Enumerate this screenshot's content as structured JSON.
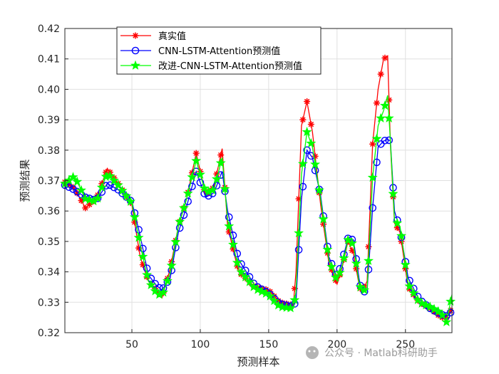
{
  "chart_data": {
    "type": "line",
    "xlabel": "预测样本",
    "ylabel": "预测结果",
    "xlim": [
      1,
      284
    ],
    "ylim": [
      0.32,
      0.42
    ],
    "xticks": [
      50,
      100,
      150,
      200,
      250
    ],
    "yticks": [
      0.32,
      0.33,
      0.34,
      0.35,
      0.36,
      0.37,
      0.38,
      0.39,
      0.4,
      0.41,
      0.42
    ],
    "grid": true,
    "legend_position": "top-left",
    "x_anchors": [
      1,
      8,
      16,
      24,
      32,
      40,
      50,
      56,
      62,
      68,
      72,
      78,
      84,
      90,
      97,
      104,
      110,
      116,
      120,
      128,
      140,
      150,
      158,
      168,
      170,
      174,
      178,
      182,
      188,
      194,
      200,
      204,
      208,
      212,
      216,
      218,
      222,
      226,
      230,
      234,
      237,
      239,
      242,
      246,
      252,
      260,
      268,
      276,
      280,
      284
    ],
    "series": [
      {
        "name": "真实值",
        "color": "#ff0000",
        "marker": "asterisk",
        "values": [
          0.3695,
          0.3675,
          0.361,
          0.364,
          0.374,
          0.369,
          0.362,
          0.345,
          0.337,
          0.334,
          0.3315,
          0.341,
          0.355,
          0.364,
          0.379,
          0.365,
          0.368,
          0.3805,
          0.355,
          0.34,
          0.335,
          0.334,
          0.33,
          0.329,
          0.34,
          0.388,
          0.396,
          0.386,
          0.362,
          0.343,
          0.336,
          0.342,
          0.35,
          0.346,
          0.336,
          0.333,
          0.337,
          0.382,
          0.4,
          0.41,
          0.411,
          0.382,
          0.356,
          0.353,
          0.335,
          0.33,
          0.328,
          0.325,
          0.325,
          0.328
        ]
      },
      {
        "name": "CNN-LSTM-Attention预测值",
        "color": "#0000ff",
        "marker": "circle",
        "values": [
          0.3685,
          0.367,
          0.3645,
          0.3635,
          0.369,
          0.367,
          0.363,
          0.352,
          0.339,
          0.3355,
          0.334,
          0.338,
          0.353,
          0.3615,
          0.373,
          0.3645,
          0.366,
          0.373,
          0.36,
          0.344,
          0.3355,
          0.333,
          0.3295,
          0.3285,
          0.3305,
          0.364,
          0.38,
          0.3775,
          0.365,
          0.345,
          0.338,
          0.344,
          0.351,
          0.3505,
          0.338,
          0.333,
          0.334,
          0.361,
          0.381,
          0.383,
          0.3835,
          0.383,
          0.36,
          0.354,
          0.338,
          0.331,
          0.328,
          0.326,
          0.3255,
          0.327
        ]
      },
      {
        "name": "改进-CNN-LSTM-Attention预测值",
        "color": "#00ff00",
        "marker": "star",
        "values": [
          0.369,
          0.3715,
          0.364,
          0.363,
          0.3725,
          0.3685,
          0.3625,
          0.349,
          0.337,
          0.333,
          0.332,
          0.3395,
          0.355,
          0.364,
          0.3765,
          0.366,
          0.367,
          0.3775,
          0.357,
          0.341,
          0.3345,
          0.3325,
          0.3285,
          0.328,
          0.3335,
          0.372,
          0.386,
          0.381,
          0.364,
          0.344,
          0.337,
          0.3425,
          0.3505,
          0.349,
          0.3365,
          0.3335,
          0.3345,
          0.371,
          0.388,
          0.393,
          0.398,
          0.383,
          0.357,
          0.355,
          0.336,
          0.33,
          0.3285,
          0.3265,
          0.3235,
          0.3325
        ]
      }
    ]
  },
  "watermark": "公众号 · Matlab科研助手"
}
